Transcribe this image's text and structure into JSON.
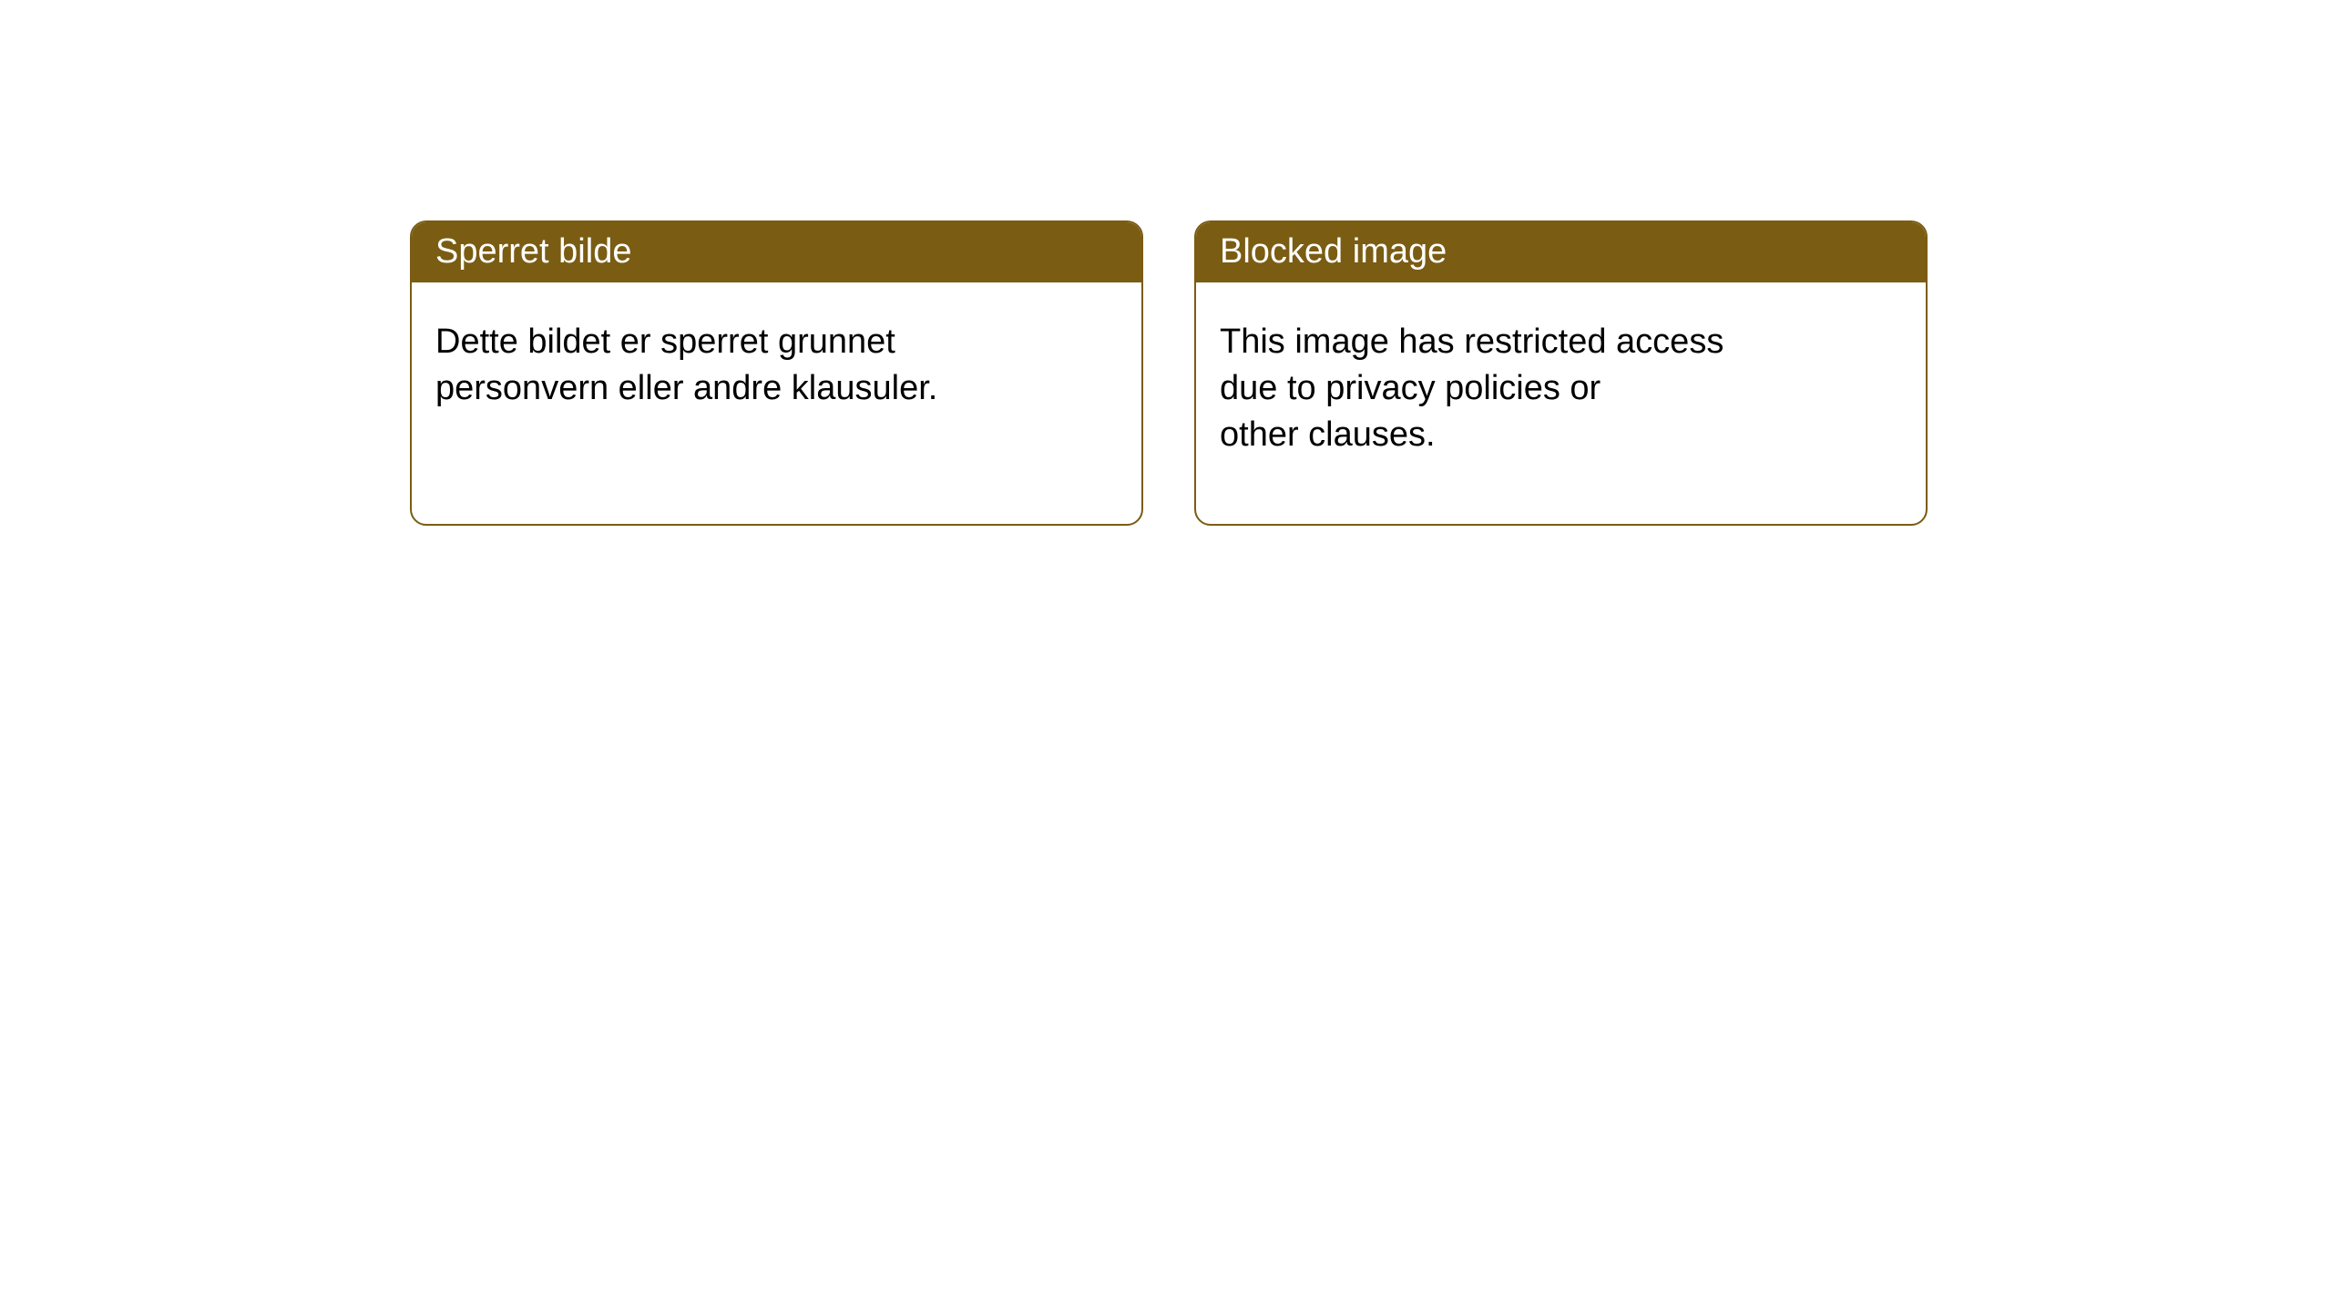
{
  "notices": [
    {
      "title": "Sperret bilde",
      "body": "Dette bildet er sperret grunnet\npersonvern eller andre klausuler."
    },
    {
      "title": "Blocked image",
      "body": "This image has restricted access\ndue to privacy policies or\nother clauses."
    }
  ],
  "styling": {
    "box_border_color": "#7a5c13",
    "header_bg_color": "#7a5c13",
    "header_text_color": "#ffffff",
    "body_text_color": "#000000",
    "background_color": "#ffffff",
    "border_radius": 18,
    "title_fontsize": 38,
    "body_fontsize": 38
  }
}
